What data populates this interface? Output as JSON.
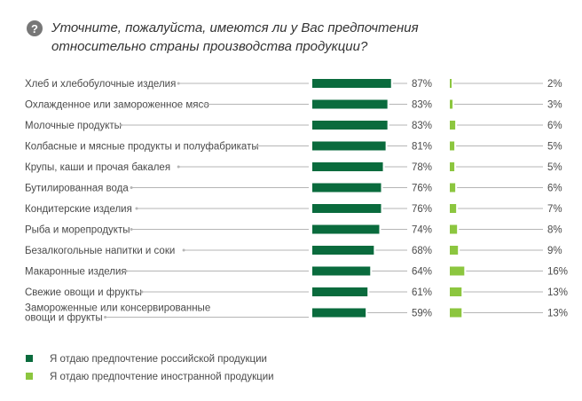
{
  "question_icon": "question-circle-icon",
  "colors": {
    "russian": "#0a6b3d",
    "foreign": "#8cc63f",
    "leader": "#b5b5b5",
    "text": "#4a4a4a"
  },
  "chart_data": {
    "type": "bar",
    "title": "Уточните, пожалуйста, имеются ли у Вас предпочтения относительно страны производства продукции?",
    "title_lines": [
      "Уточните, пожалуйста, имеются ли у Вас предпочтения",
      "относительно страны производства продукции?"
    ],
    "xlabel": "",
    "ylabel": "",
    "categories": [
      [
        "Хлеб и хлебобулочные изделия"
      ],
      [
        "Охлажденное или замороженное мясо"
      ],
      [
        "Молочные продукты"
      ],
      [
        "Колбасные и мясные продукты и полуфабрикаты"
      ],
      [
        "Крупы, каши и прочая бакалея"
      ],
      [
        "Бутилированная вода"
      ],
      [
        "Кондитерские изделия"
      ],
      [
        "Рыба и морепродукты"
      ],
      [
        "Безалкогольные напитки и соки"
      ],
      [
        "Макаронные изделия"
      ],
      [
        "Свежие овощи и фрукты"
      ],
      [
        "Замороженные или консервированные",
        "овощи и фрукты"
      ]
    ],
    "series": [
      {
        "name": "Я отдаю предпочтение российской продукции",
        "values": [
          87,
          83,
          83,
          81,
          78,
          76,
          76,
          74,
          68,
          64,
          61,
          59
        ],
        "labels": [
          "87%",
          "83%",
          "83%",
          "81%",
          "78%",
          "76%",
          "76%",
          "74%",
          "68%",
          "64%",
          "61%",
          "59%"
        ]
      },
      {
        "name": "Я отдаю предпочтение иностранной продукции",
        "values": [
          2,
          3,
          6,
          5,
          5,
          6,
          7,
          8,
          9,
          16,
          13,
          13
        ],
        "labels": [
          "2%",
          "3%",
          "6%",
          "5%",
          "5%",
          "6%",
          "7%",
          "8%",
          "9%",
          "16%",
          "13%",
          "13%"
        ]
      }
    ],
    "legend_position": "bottom-left",
    "grid": false
  }
}
